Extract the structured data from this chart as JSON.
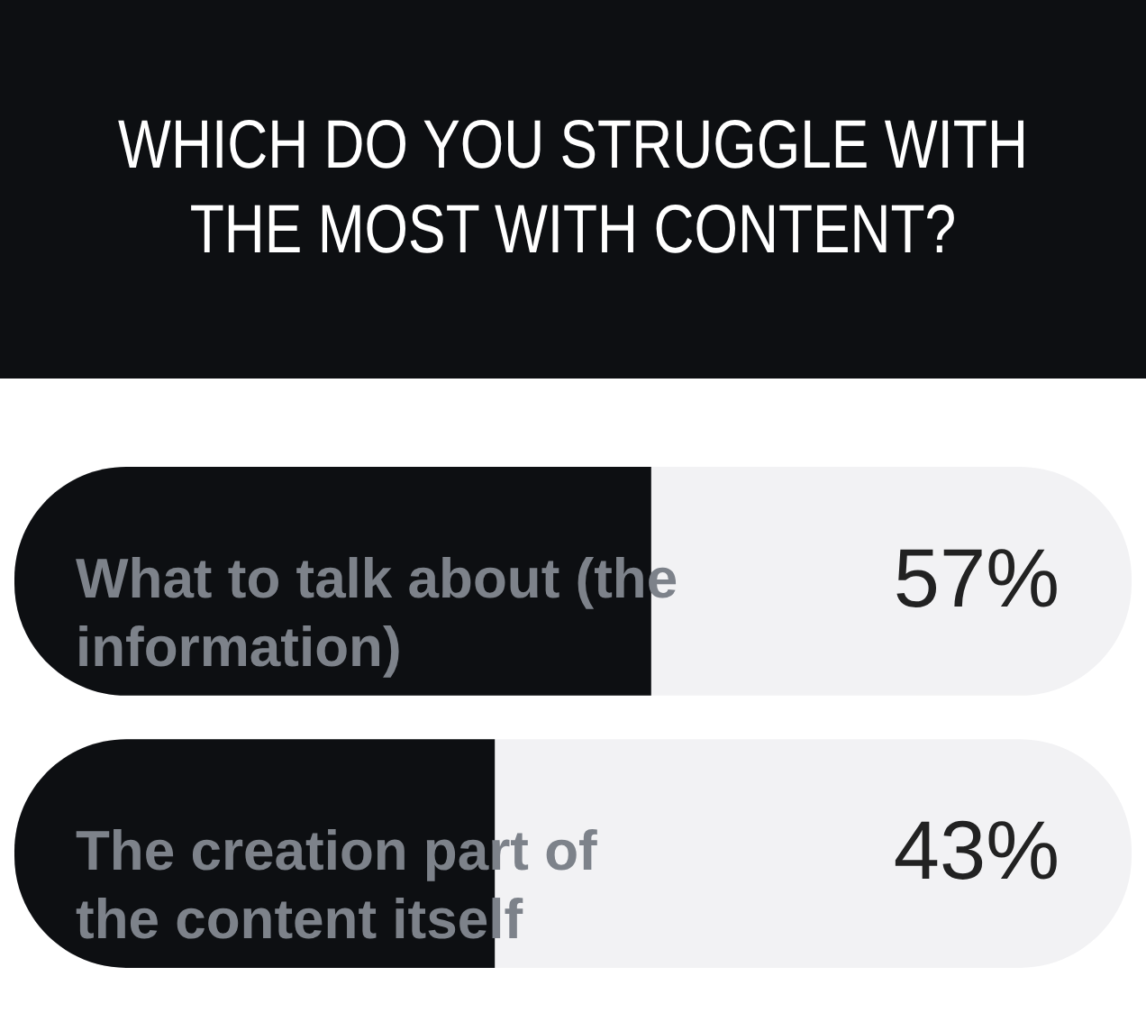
{
  "chart_data": {
    "type": "bar",
    "orientation": "horizontal",
    "title": "WHICH DO YOU STRUGGLE WITH THE MOST WITH CONTENT?",
    "categories": [
      "What to talk about (the information)",
      "The creation part of the content itself"
    ],
    "values": [
      57,
      43
    ],
    "color": "#0d0f12",
    "value_labels": [
      "57%",
      "43%"
    ],
    "xlim": [
      0,
      100
    ],
    "tick_labels": false
  }
}
